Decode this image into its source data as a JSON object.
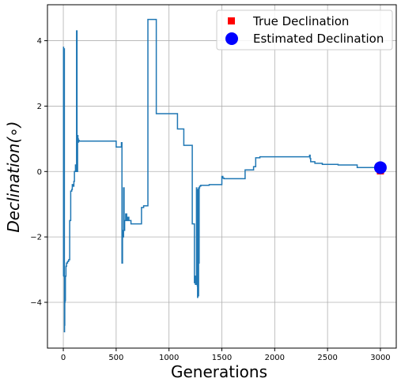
{
  "chart_data": {
    "type": "line",
    "xlabel": "Generations",
    "ylabel": "Declination(∘)",
    "xlim": [
      -150,
      3150
    ],
    "ylim": [
      -5.4,
      5.1
    ],
    "xticks": [
      0,
      500,
      1000,
      1500,
      2000,
      2500,
      3000
    ],
    "yticks": [
      -4,
      -2,
      0,
      2,
      4
    ],
    "grid": true,
    "legend_position": "top-right",
    "legend": [
      {
        "label": "True Declination",
        "marker": "square",
        "color": "#ff0000"
      },
      {
        "label": "Estimated Declination",
        "marker": "circle",
        "color": "#0000ff"
      }
    ],
    "line_color": "#1f77b4",
    "series": [
      {
        "x": [
          0,
          2,
          3,
          5,
          6,
          8,
          9,
          10,
          12,
          14,
          16,
          18,
          20,
          25,
          30,
          35,
          40,
          50,
          60,
          70,
          80,
          85,
          90,
          95,
          100,
          105,
          110,
          115,
          120,
          125,
          130,
          135,
          138,
          140,
          142,
          145,
          150,
          155,
          160,
          165,
          170,
          300,
          450,
          500,
          520,
          550,
          555,
          560,
          565,
          570,
          575,
          580,
          590,
          600,
          610,
          620,
          640,
          680,
          740,
          760,
          780,
          800,
          820,
          830,
          850,
          880,
          900,
          910,
          1000,
          1080,
          1100,
          1140,
          1150,
          1200,
          1220,
          1230,
          1240,
          1245,
          1250,
          1260,
          1262,
          1265,
          1268,
          1270,
          1272,
          1275,
          1278,
          1280,
          1282,
          1285,
          1288,
          1290,
          1292,
          1295,
          1298,
          1300,
          1330,
          1350,
          1380,
          1400,
          1480,
          1500,
          1510,
          1520,
          1600,
          1700,
          1720,
          1780,
          1800,
          1810,
          1820,
          1840,
          1860,
          1900,
          2000,
          2200,
          2300,
          2320,
          2330,
          2335,
          2340,
          2350,
          2380,
          2400,
          2450,
          2500,
          2600,
          2700,
          2780,
          2800,
          2900,
          3000
        ],
        "y": [
          -3.2,
          3.8,
          -0.6,
          3.7,
          2.2,
          -0.4,
          3.75,
          -4.9,
          -4.7,
          -4.0,
          -3.8,
          -3.95,
          -3.2,
          -2.9,
          -2.8,
          -2.8,
          -2.75,
          -2.7,
          -1.5,
          -0.6,
          -0.55,
          -0.4,
          -0.4,
          -0.45,
          -0.3,
          0.0,
          0.0,
          0.2,
          0.0,
          4.3,
          0.0,
          1.1,
          0.9,
          1.0,
          0.9,
          0.95,
          0.93,
          0.93,
          0.93,
          0.93,
          0.93,
          0.93,
          0.93,
          0.75,
          0.75,
          0.88,
          -2.8,
          -1.8,
          -2.0,
          -0.5,
          -1.8,
          -1.5,
          -1.3,
          -1.5,
          -1.4,
          -1.5,
          -1.6,
          -1.6,
          -1.1,
          -1.05,
          -1.05,
          4.65,
          4.65,
          4.65,
          4.65,
          1.77,
          1.77,
          1.77,
          1.77,
          1.3,
          1.3,
          0.8,
          0.8,
          0.8,
          -1.6,
          -1.6,
          -3.4,
          -3.2,
          -3.45,
          -0.5,
          -3.0,
          -0.6,
          -3.5,
          -3.85,
          -0.55,
          -0.6,
          -3.8,
          -0.5,
          -2.8,
          -0.5,
          -0.5,
          -0.45,
          -0.45,
          -0.45,
          -0.45,
          -0.42,
          -0.42,
          -0.42,
          -0.4,
          -0.4,
          -0.4,
          -0.15,
          -0.2,
          -0.22,
          -0.22,
          -0.22,
          0.05,
          0.05,
          0.15,
          0.15,
          0.42,
          0.42,
          0.45,
          0.45,
          0.45,
          0.45,
          0.45,
          0.45,
          0.5,
          0.4,
          0.3,
          0.3,
          0.25,
          0.25,
          0.22,
          0.22,
          0.2,
          0.2,
          0.12,
          0.12,
          0.12,
          0.12
        ]
      }
    ],
    "true_point": {
      "x": 3000,
      "y": 0.02
    },
    "estimated_point": {
      "x": 3000,
      "y": 0.12
    }
  }
}
